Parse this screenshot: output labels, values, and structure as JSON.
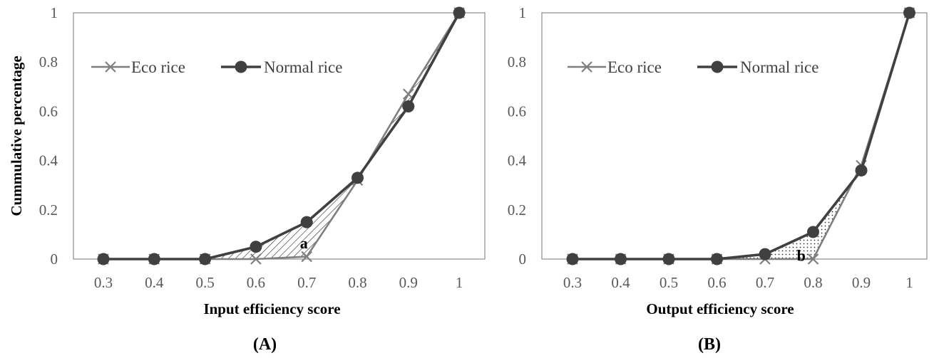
{
  "chart_data": [
    {
      "panel_label": "(A)",
      "type": "line",
      "xlabel": "Input  efficiency score",
      "ylabel": "Cummulative  percentage",
      "x": [
        0.3,
        0.4,
        0.5,
        0.6,
        0.7,
        0.8,
        0.9,
        1
      ],
      "x_tick_labels": [
        "0.3",
        "0.4",
        "0.5",
        "0.6",
        "0.7",
        "0.8",
        "0.9",
        "1"
      ],
      "ylim": [
        0,
        1
      ],
      "y_ticks": [
        0,
        0.2,
        0.4,
        0.6,
        0.8,
        1
      ],
      "y_tick_labels": [
        "0",
        "0.2",
        "0.4",
        "0.6",
        "0.8",
        "1"
      ],
      "series": [
        {
          "name": "Eco rice",
          "marker": "x",
          "color": "#7f7f7f",
          "values": [
            0,
            0,
            0,
            0,
            0.01,
            0.32,
            0.67,
            1
          ]
        },
        {
          "name": "Normal rice",
          "marker": "circle",
          "color": "#404040",
          "values": [
            0,
            0,
            0,
            0.05,
            0.15,
            0.33,
            0.62,
            1
          ]
        }
      ],
      "shaded_region": {
        "pattern": "diagonal-hatch",
        "between": [
          "Normal rice",
          "Eco rice"
        ]
      },
      "annotation": {
        "text": "a",
        "x": 0.7,
        "y": 0.02
      },
      "legend": "top-left",
      "grid": false
    },
    {
      "panel_label": "(B)",
      "type": "line",
      "xlabel": "Output  efficiency score",
      "ylabel": "",
      "x": [
        0.3,
        0.4,
        0.5,
        0.6,
        0.7,
        0.8,
        0.9,
        1
      ],
      "x_tick_labels": [
        "0.3",
        "0.4",
        "0.5",
        "0.6",
        "0.7",
        "0.8",
        "0.9",
        "1"
      ],
      "ylim": [
        0,
        1
      ],
      "y_ticks": [
        0,
        0.2,
        0.4,
        0.6,
        0.8,
        1
      ],
      "y_tick_labels": [
        "0",
        "0.2",
        "0.4",
        "0.6",
        "0.8",
        "1"
      ],
      "series": [
        {
          "name": "Eco rice",
          "marker": "x",
          "color": "#7f7f7f",
          "values": [
            0,
            0,
            0,
            0,
            0,
            0,
            0.38,
            1
          ]
        },
        {
          "name": "Normal rice",
          "marker": "circle",
          "color": "#404040",
          "values": [
            0,
            0,
            0,
            0,
            0.02,
            0.11,
            0.36,
            1
          ]
        }
      ],
      "shaded_region": {
        "pattern": "dots",
        "between": [
          "Normal rice",
          "Eco rice"
        ]
      },
      "annotation": {
        "text": "b",
        "x": 0.79,
        "y": 0.01
      },
      "legend": "top-left",
      "grid": false
    }
  ]
}
